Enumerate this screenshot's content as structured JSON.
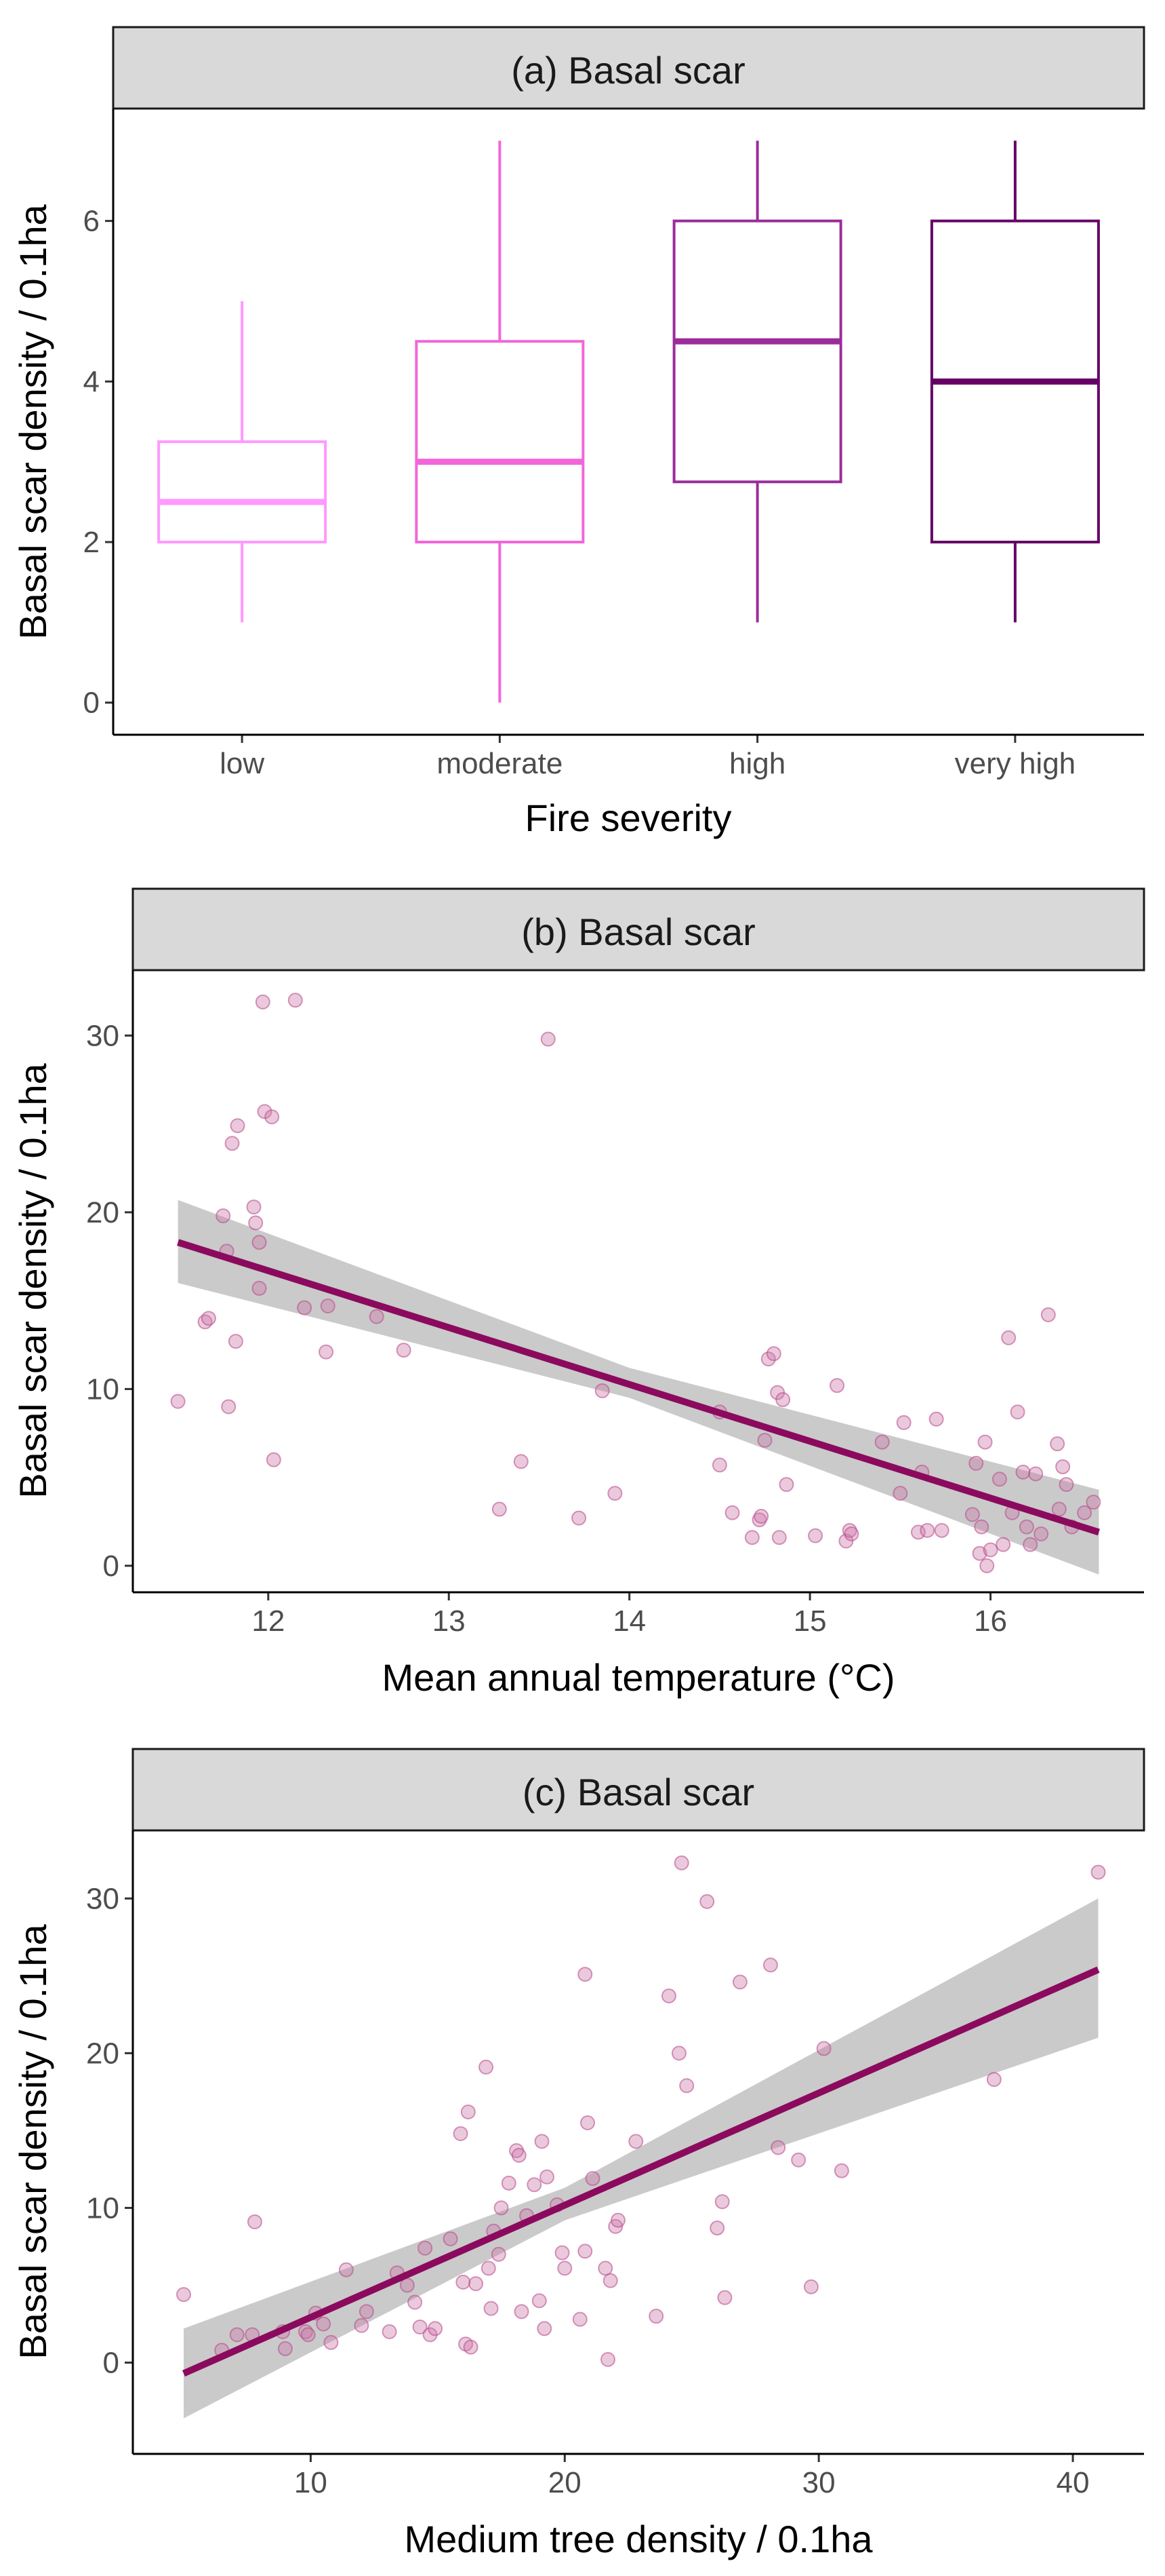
{
  "colors": {
    "strip_fill": "#d9d9d9",
    "axis": "#000000",
    "tick_text": "#4d4d4d",
    "fit_line": "#8b0a5e",
    "ci_band": "#bdbdbd",
    "point": "#cc79a7"
  },
  "chart_data": [
    {
      "type": "box",
      "title": "(a) Basal scar",
      "xlabel": "Fire severity",
      "ylabel": "Basal scar density / 0.1ha",
      "ylim": [
        -0.4,
        7.4
      ],
      "yticks": [
        0,
        2,
        4,
        6
      ],
      "ytick_labels": [
        "0",
        "2",
        "4",
        "6"
      ],
      "categories": [
        "low",
        "moderate",
        "high",
        "very high"
      ],
      "boxes": [
        {
          "category": "low",
          "whisker_low": 1,
          "q1": 2,
          "median": 2.5,
          "q3": 3.25,
          "whisker_high": 5,
          "color": "#ff99ff"
        },
        {
          "category": "moderate",
          "whisker_low": 0,
          "q1": 2,
          "median": 3,
          "q3": 4.5,
          "whisker_high": 7,
          "color": "#f266d9"
        },
        {
          "category": "high",
          "whisker_low": 1,
          "q1": 2.75,
          "median": 4.5,
          "q3": 6,
          "whisker_high": 7,
          "color": "#9b2c9b"
        },
        {
          "category": "very high",
          "whisker_low": 1,
          "q1": 2,
          "median": 4,
          "q3": 6,
          "whisker_high": 7,
          "color": "#660066"
        }
      ]
    },
    {
      "type": "scatter",
      "title": "(b) Basal scar",
      "xlabel": "Mean annual temperature (°C)",
      "ylabel": "Basal scar density / 0.1ha",
      "xlim": [
        11.25,
        16.85
      ],
      "ylim": [
        -1.5,
        33.7
      ],
      "xticks": [
        12,
        13,
        14,
        15,
        16
      ],
      "xtick_labels": [
        "12",
        "13",
        "14",
        "15",
        "16"
      ],
      "yticks": [
        0,
        10,
        20,
        30
      ],
      "ytick_labels": [
        "0",
        "10",
        "20",
        "30"
      ],
      "fit": {
        "x": [
          11.5,
          16.6
        ],
        "y": [
          18.3,
          1.9
        ]
      },
      "ci": {
        "x": [
          11.5,
          14.0,
          16.6
        ],
        "lower": [
          16.0,
          9.5,
          -0.5
        ],
        "upper": [
          20.7,
          11.2,
          4.3
        ]
      },
      "points": [
        [
          11.5,
          9.3
        ],
        [
          11.65,
          13.8
        ],
        [
          11.67,
          14.0
        ],
        [
          11.75,
          19.8
        ],
        [
          11.77,
          17.8
        ],
        [
          11.78,
          9.0
        ],
        [
          11.8,
          23.9
        ],
        [
          11.82,
          12.7
        ],
        [
          11.83,
          24.9
        ],
        [
          11.92,
          20.3
        ],
        [
          11.93,
          19.4
        ],
        [
          11.95,
          15.7
        ],
        [
          11.95,
          18.3
        ],
        [
          11.97,
          31.9
        ],
        [
          11.98,
          25.7
        ],
        [
          12.02,
          25.4
        ],
        [
          12.03,
          6.0
        ],
        [
          12.15,
          32.0
        ],
        [
          12.2,
          14.6
        ],
        [
          12.33,
          14.7
        ],
        [
          12.32,
          12.1
        ],
        [
          12.6,
          14.1
        ],
        [
          12.75,
          12.2
        ],
        [
          13.28,
          3.2
        ],
        [
          13.4,
          5.9
        ],
        [
          13.55,
          29.8
        ],
        [
          13.72,
          2.7
        ],
        [
          13.85,
          9.9
        ],
        [
          13.92,
          4.1
        ],
        [
          14.5,
          8.7
        ],
        [
          14.5,
          5.7
        ],
        [
          14.57,
          3.0
        ],
        [
          14.68,
          1.6
        ],
        [
          14.72,
          2.6
        ],
        [
          14.73,
          2.8
        ],
        [
          14.75,
          7.1
        ],
        [
          14.77,
          11.7
        ],
        [
          14.8,
          12.0
        ],
        [
          14.82,
          9.8
        ],
        [
          14.83,
          1.6
        ],
        [
          14.85,
          9.4
        ],
        [
          14.87,
          4.6
        ],
        [
          15.03,
          1.7
        ],
        [
          15.15,
          10.2
        ],
        [
          15.2,
          1.4
        ],
        [
          15.22,
          2.0
        ],
        [
          15.23,
          1.8
        ],
        [
          15.4,
          7.0
        ],
        [
          15.5,
          4.1
        ],
        [
          15.52,
          8.1
        ],
        [
          15.6,
          1.9
        ],
        [
          15.62,
          5.3
        ],
        [
          15.65,
          2.0
        ],
        [
          15.7,
          8.3
        ],
        [
          15.73,
          2.0
        ],
        [
          15.9,
          2.9
        ],
        [
          15.92,
          5.8
        ],
        [
          15.94,
          0.7
        ],
        [
          15.95,
          2.2
        ],
        [
          15.97,
          7.0
        ],
        [
          15.98,
          0.0
        ],
        [
          16.0,
          0.9
        ],
        [
          16.05,
          4.9
        ],
        [
          16.07,
          1.2
        ],
        [
          16.1,
          12.9
        ],
        [
          16.12,
          3.0
        ],
        [
          16.15,
          8.7
        ],
        [
          16.18,
          5.3
        ],
        [
          16.2,
          2.2
        ],
        [
          16.22,
          1.2
        ],
        [
          16.25,
          5.2
        ],
        [
          16.28,
          1.8
        ],
        [
          16.32,
          14.2
        ],
        [
          16.37,
          6.9
        ],
        [
          16.38,
          3.2
        ],
        [
          16.4,
          5.6
        ],
        [
          16.42,
          4.6
        ],
        [
          16.45,
          2.2
        ],
        [
          16.52,
          3.0
        ],
        [
          16.57,
          3.6
        ]
      ]
    },
    {
      "type": "scatter",
      "title": "(c) Basal scar",
      "xlabel": "Medium tree density / 0.1ha",
      "ylabel": "Basal scar density / 0.1ha",
      "xlim": [
        3.0,
        42.8
      ],
      "ylim": [
        -5.9,
        34.4
      ],
      "xticks": [
        10,
        20,
        30,
        40
      ],
      "xtick_labels": [
        "10",
        "20",
        "30",
        "40"
      ],
      "yticks": [
        0,
        10,
        20,
        30
      ],
      "ytick_labels": [
        "0",
        "10",
        "20",
        "30"
      ],
      "fit": {
        "x": [
          5,
          41
        ],
        "y": [
          -0.7,
          25.4
        ]
      },
      "ci": {
        "x": [
          5,
          20,
          41
        ],
        "lower": [
          -3.6,
          9.2,
          21.0
        ],
        "upper": [
          2.2,
          11.3,
          30.0
        ]
      },
      "points": [
        [
          5,
          4.4
        ],
        [
          6.5,
          0.8
        ],
        [
          7.1,
          1.8
        ],
        [
          7.7,
          1.8
        ],
        [
          7.8,
          9.1
        ],
        [
          8.9,
          2.0
        ],
        [
          9.0,
          0.9
        ],
        [
          9.8,
          2.0
        ],
        [
          9.9,
          1.8
        ],
        [
          10.2,
          3.2
        ],
        [
          10.5,
          2.5
        ],
        [
          10.8,
          1.3
        ],
        [
          11.4,
          6.0
        ],
        [
          12.0,
          2.4
        ],
        [
          12.2,
          3.3
        ],
        [
          13.1,
          2.0
        ],
        [
          13.4,
          5.8
        ],
        [
          13.8,
          5.0
        ],
        [
          14.1,
          3.9
        ],
        [
          14.3,
          2.3
        ],
        [
          14.5,
          7.4
        ],
        [
          14.7,
          1.8
        ],
        [
          14.9,
          2.2
        ],
        [
          15.5,
          8.0
        ],
        [
          15.9,
          14.8
        ],
        [
          16.0,
          5.2
        ],
        [
          16.1,
          1.2
        ],
        [
          16.2,
          16.2
        ],
        [
          16.3,
          1.0
        ],
        [
          16.5,
          5.1
        ],
        [
          16.9,
          19.1
        ],
        [
          17.0,
          6.1
        ],
        [
          17.1,
          3.5
        ],
        [
          17.2,
          8.5
        ],
        [
          17.4,
          7.0
        ],
        [
          17.5,
          10.0
        ],
        [
          17.8,
          11.6
        ],
        [
          18.1,
          13.7
        ],
        [
          18.2,
          13.4
        ],
        [
          18.3,
          3.3
        ],
        [
          18.5,
          9.5
        ],
        [
          18.8,
          11.5
        ],
        [
          19.0,
          4.0
        ],
        [
          19.1,
          14.3
        ],
        [
          19.2,
          2.2
        ],
        [
          19.3,
          12.0
        ],
        [
          19.7,
          10.2
        ],
        [
          19.9,
          7.1
        ],
        [
          20.0,
          6.1
        ],
        [
          20.6,
          2.8
        ],
        [
          20.8,
          25.1
        ],
        [
          20.8,
          7.2
        ],
        [
          20.9,
          15.5
        ],
        [
          21.1,
          11.9
        ],
        [
          21.6,
          6.1
        ],
        [
          21.7,
          0.2
        ],
        [
          21.8,
          5.3
        ],
        [
          22.0,
          8.8
        ],
        [
          22.1,
          9.2
        ],
        [
          22.8,
          14.3
        ],
        [
          23.6,
          3.0
        ],
        [
          24.1,
          23.7
        ],
        [
          24.5,
          20.0
        ],
        [
          24.6,
          32.3
        ],
        [
          24.8,
          17.9
        ],
        [
          25.6,
          29.8
        ],
        [
          26.0,
          8.7
        ],
        [
          26.2,
          10.4
        ],
        [
          26.3,
          4.2
        ],
        [
          26.9,
          24.6
        ],
        [
          28.1,
          25.7
        ],
        [
          28.4,
          13.9
        ],
        [
          29.2,
          13.1
        ],
        [
          29.7,
          4.9
        ],
        [
          30.2,
          20.3
        ],
        [
          30.9,
          12.4
        ],
        [
          36.9,
          18.3
        ],
        [
          41.0,
          31.7
        ]
      ]
    }
  ]
}
